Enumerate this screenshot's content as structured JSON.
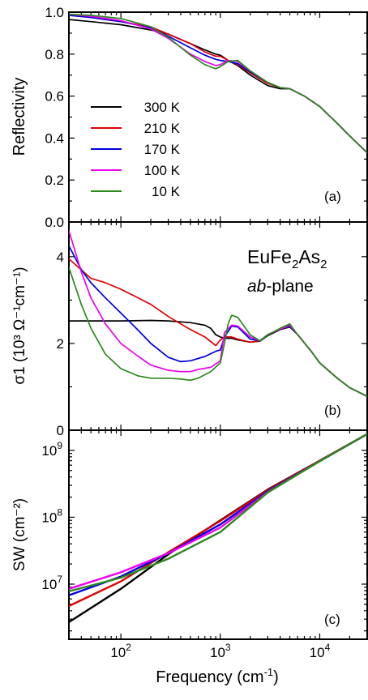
{
  "colors": {
    "300 K": "#000000",
    "210 K": "#e00000",
    "170 K": "#0000e0",
    "100 K": "#ee00ee",
    "10 K": "#2a8a1a"
  },
  "xlabel": "Frequency (cm",
  "xlabel_sup": "-1",
  "xlabel_end": ")",
  "chart_data": [
    {
      "panel": "a",
      "type": "line",
      "panel_label": "(a)",
      "ylabel": "Reflectivity",
      "xscale": "log",
      "xlim": [
        30,
        30000
      ],
      "ylim": [
        0.0,
        1.0
      ],
      "yticks": [
        "0.0",
        "0.2",
        "0.4",
        "0.6",
        "0.8",
        "1.0"
      ],
      "legend": {
        "position": "lower-left",
        "entries": [
          "300 K",
          "210 K",
          "170 K",
          "100 K",
          "10 K"
        ]
      },
      "series": [
        {
          "name": "300 K",
          "x": [
            30,
            50,
            100,
            200,
            300,
            500,
            700,
            900,
            1000,
            1200,
            1500,
            2000,
            3000,
            4000,
            5000,
            7000,
            10000,
            15000,
            20000,
            30000
          ],
          "y": [
            0.965,
            0.955,
            0.94,
            0.915,
            0.895,
            0.85,
            0.82,
            0.8,
            0.795,
            0.77,
            0.745,
            0.7,
            0.65,
            0.635,
            0.635,
            0.6,
            0.55,
            0.47,
            0.41,
            0.33
          ]
        },
        {
          "name": "210 K",
          "x": [
            30,
            50,
            100,
            200,
            300,
            500,
            700,
            900,
            1000,
            1200,
            1500,
            2000,
            3000,
            4000,
            5000,
            7000,
            10000,
            15000,
            20000,
            30000
          ],
          "y": [
            0.985,
            0.975,
            0.955,
            0.93,
            0.895,
            0.85,
            0.81,
            0.79,
            0.79,
            0.77,
            0.75,
            0.71,
            0.66,
            0.64,
            0.635,
            0.6,
            0.55,
            0.47,
            0.41,
            0.33
          ]
        },
        {
          "name": "170 K",
          "x": [
            30,
            50,
            100,
            200,
            300,
            500,
            700,
            900,
            1000,
            1200,
            1500,
            2000,
            3000,
            4000,
            5000,
            7000,
            10000,
            15000,
            20000,
            30000
          ],
          "y": [
            0.985,
            0.975,
            0.955,
            0.925,
            0.885,
            0.83,
            0.795,
            0.775,
            0.77,
            0.765,
            0.755,
            0.715,
            0.665,
            0.64,
            0.635,
            0.6,
            0.55,
            0.47,
            0.41,
            0.33
          ]
        },
        {
          "name": "100 K",
          "x": [
            30,
            50,
            100,
            200,
            300,
            500,
            700,
            900,
            1000,
            1200,
            1500,
            2000,
            3000,
            4000,
            5000,
            7000,
            10000,
            15000,
            20000,
            30000
          ],
          "y": [
            0.99,
            0.98,
            0.96,
            0.92,
            0.875,
            0.8,
            0.765,
            0.745,
            0.75,
            0.77,
            0.765,
            0.72,
            0.665,
            0.64,
            0.635,
            0.6,
            0.55,
            0.47,
            0.41,
            0.33
          ]
        },
        {
          "name": "10 K",
          "x": [
            30,
            50,
            100,
            200,
            300,
            500,
            700,
            900,
            1000,
            1200,
            1500,
            2000,
            3000,
            4000,
            5000,
            7000,
            10000,
            15000,
            20000,
            30000
          ],
          "y": [
            0.99,
            0.985,
            0.97,
            0.93,
            0.88,
            0.795,
            0.75,
            0.73,
            0.74,
            0.765,
            0.77,
            0.72,
            0.665,
            0.64,
            0.635,
            0.6,
            0.55,
            0.47,
            0.41,
            0.33
          ]
        }
      ]
    },
    {
      "panel": "b",
      "type": "line",
      "panel_label": "(b)",
      "ylabel": "σ1 (10³ Ω⁻¹cm⁻¹)",
      "xscale": "log",
      "xlim": [
        30,
        30000
      ],
      "ylim": [
        0,
        4.8
      ],
      "yticks": [
        "0",
        "2",
        "4"
      ],
      "annotation": {
        "formula": [
          "EuFe",
          "2",
          "As",
          "2"
        ],
        "plane_italic": "ab",
        "plane_rest": "-plane"
      },
      "series": [
        {
          "name": "300 K",
          "x": [
            30,
            50,
            100,
            200,
            300,
            500,
            700,
            800,
            900,
            1000,
            1100,
            1300,
            1500,
            2000,
            2500,
            3000,
            4000,
            5000,
            6000,
            8000,
            10000,
            15000,
            20000,
            30000
          ],
          "y": [
            2.52,
            2.52,
            2.52,
            2.53,
            2.52,
            2.48,
            2.42,
            2.35,
            2.2,
            2.15,
            2.12,
            2.12,
            2.08,
            2.03,
            2.05,
            2.18,
            2.32,
            2.38,
            2.2,
            1.85,
            1.55,
            1.2,
            0.98,
            0.78
          ]
        },
        {
          "name": "210 K",
          "x": [
            30,
            50,
            70,
            100,
            150,
            200,
            300,
            500,
            700,
            900,
            1000,
            1100,
            1300,
            1500,
            2000,
            2500,
            3000,
            4000,
            5000,
            6000,
            8000,
            10000,
            15000,
            20000,
            30000
          ],
          "y": [
            3.95,
            3.5,
            3.4,
            3.25,
            3.05,
            2.9,
            2.62,
            2.32,
            2.15,
            1.95,
            2.08,
            2.15,
            2.15,
            2.1,
            2.03,
            2.06,
            2.2,
            2.33,
            2.4,
            2.2,
            1.85,
            1.55,
            1.2,
            0.98,
            0.78
          ]
        },
        {
          "name": "170 K",
          "x": [
            30,
            40,
            50,
            70,
            100,
            150,
            200,
            300,
            400,
            500,
            700,
            900,
            1000,
            1100,
            1300,
            1500,
            2000,
            2500,
            3000,
            4000,
            5000,
            6000,
            8000,
            10000,
            15000,
            20000,
            30000
          ],
          "y": [
            4.25,
            3.7,
            3.4,
            3.05,
            2.7,
            2.3,
            2.0,
            1.68,
            1.58,
            1.6,
            1.7,
            1.82,
            1.85,
            2.15,
            2.4,
            2.38,
            2.1,
            2.06,
            2.2,
            2.33,
            2.4,
            2.2,
            1.85,
            1.55,
            1.2,
            0.98,
            0.78
          ]
        },
        {
          "name": "100 K",
          "x": [
            30,
            40,
            50,
            70,
            100,
            150,
            200,
            300,
            400,
            500,
            600,
            800,
            1000,
            1100,
            1300,
            1500,
            2000,
            2500,
            3000,
            4000,
            5000,
            6000,
            8000,
            10000,
            15000,
            20000,
            30000
          ],
          "y": [
            4.6,
            3.65,
            3.05,
            2.45,
            2.0,
            1.7,
            1.5,
            1.38,
            1.35,
            1.35,
            1.4,
            1.45,
            1.6,
            2.25,
            2.42,
            2.4,
            2.15,
            2.06,
            2.2,
            2.33,
            2.42,
            2.2,
            1.85,
            1.55,
            1.2,
            0.98,
            0.78
          ]
        },
        {
          "name": "10 K",
          "x": [
            30,
            40,
            50,
            70,
            100,
            150,
            200,
            300,
            400,
            500,
            600,
            800,
            1000,
            1100,
            1200,
            1300,
            1500,
            2000,
            2500,
            3000,
            4000,
            5000,
            6000,
            8000,
            10000,
            15000,
            20000,
            30000
          ],
          "y": [
            3.75,
            2.9,
            2.35,
            1.75,
            1.42,
            1.25,
            1.2,
            1.2,
            1.18,
            1.15,
            1.2,
            1.35,
            1.55,
            2.0,
            2.45,
            2.65,
            2.6,
            2.2,
            2.06,
            2.2,
            2.35,
            2.45,
            2.2,
            1.85,
            1.55,
            1.2,
            0.98,
            0.78
          ]
        }
      ]
    },
    {
      "panel": "c",
      "type": "line",
      "panel_label": "(c)",
      "ylabel": "SW (cm⁻²)",
      "xscale": "log",
      "yscale": "log",
      "xlim": [
        30,
        30000
      ],
      "ylim": [
        1500000,
        2000000000
      ],
      "series": [
        {
          "name": "300 K",
          "x": [
            30,
            100,
            300,
            1000,
            3000,
            10000,
            30000
          ],
          "y": [
            2700000,
            8500000,
            28000000,
            90000000,
            260000000,
            700000000,
            1750000000
          ]
        },
        {
          "name": "210 K",
          "x": [
            30,
            100,
            300,
            1000,
            3000,
            10000,
            30000
          ],
          "y": [
            4700000,
            11000000,
            30000000,
            88000000,
            255000000,
            700000000,
            1750000000
          ]
        },
        {
          "name": "170 K",
          "x": [
            30,
            100,
            300,
            1000,
            3000,
            10000,
            30000
          ],
          "y": [
            6800000,
            13000000,
            29000000,
            78000000,
            245000000,
            690000000,
            1750000000
          ]
        },
        {
          "name": "100 K",
          "x": [
            30,
            100,
            300,
            1000,
            3000,
            10000,
            30000
          ],
          "y": [
            8500000,
            15000000,
            29000000,
            70000000,
            238000000,
            690000000,
            1750000000
          ]
        },
        {
          "name": "10 K",
          "x": [
            30,
            100,
            300,
            1000,
            3000,
            10000,
            30000
          ],
          "y": [
            7800000,
            12500000,
            24000000,
            60000000,
            235000000,
            690000000,
            1750000000
          ]
        }
      ]
    }
  ]
}
